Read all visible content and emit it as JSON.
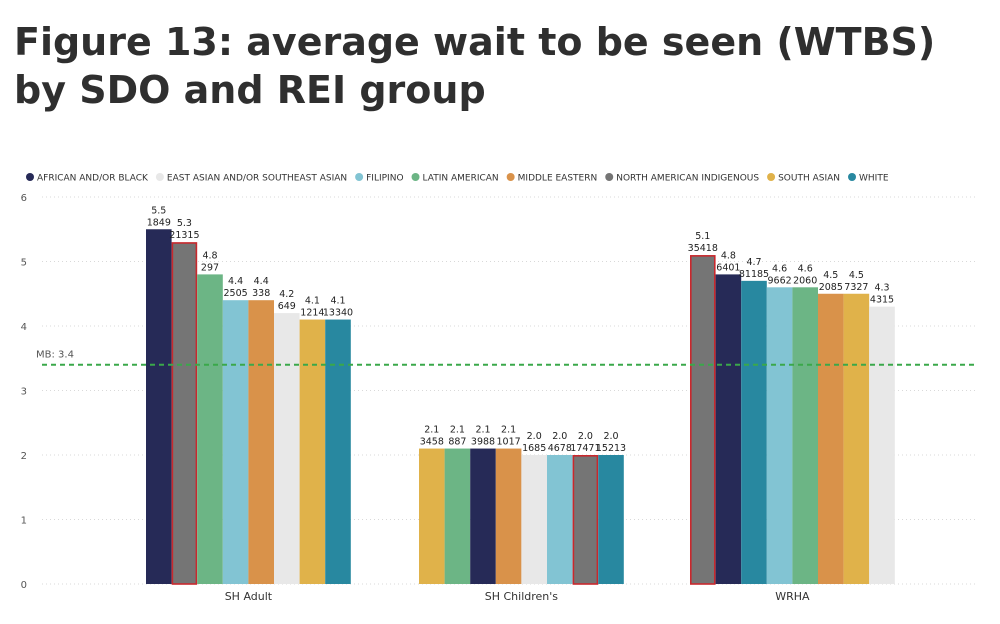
{
  "title": "Figure 13: average wait to be seen (WTBS) by SDO and REI group",
  "chart_data": {
    "type": "bar",
    "title": "Figure 13: average wait to be seen (WTBS) by SDO and REI group",
    "xlabel": "",
    "ylabel": "",
    "ylim": [
      0,
      6
    ],
    "yticks": [
      0,
      1,
      2,
      3,
      4,
      5,
      6
    ],
    "grid": true,
    "legend_position": "top-left",
    "reference_line": {
      "label": "MB: 3.4",
      "value": 3.4,
      "color": "#3aa84a"
    },
    "legend": [
      {
        "name": "AFRICAN AND/OR BLACK",
        "color": "#262a57"
      },
      {
        "name": "EAST ASIAN AND/OR SOUTHEAST ASIAN",
        "color": "#e8e8e8"
      },
      {
        "name": "FILIPINO",
        "color": "#82c4d3"
      },
      {
        "name": "LATIN AMERICAN",
        "color": "#6cb585"
      },
      {
        "name": "MIDDLE EASTERN",
        "color": "#d9924a"
      },
      {
        "name": "NORTH AMERICAN INDIGENOUS",
        "color": "#757575"
      },
      {
        "name": "SOUTH ASIAN",
        "color": "#e0b24a"
      },
      {
        "name": "WHITE",
        "color": "#2888a0"
      }
    ],
    "highlight_group": "NORTH AMERICAN INDIGENOUS",
    "highlight_color": "#c8282d",
    "categories": [
      {
        "name": "SH Adult",
        "bars": [
          {
            "group": "AFRICAN AND/OR BLACK",
            "value": 5.5,
            "value_label": "5.5",
            "count_label": "1849"
          },
          {
            "group": "NORTH AMERICAN INDIGENOUS",
            "value": 5.3,
            "value_label": "5.3",
            "count_label": "21315"
          },
          {
            "group": "LATIN AMERICAN",
            "value": 4.8,
            "value_label": "4.8",
            "count_label": "297"
          },
          {
            "group": "FILIPINO",
            "value": 4.4,
            "value_label": "4.4",
            "count_label": "2505"
          },
          {
            "group": "MIDDLE EASTERN",
            "value": 4.4,
            "value_label": "4.4",
            "count_label": "338"
          },
          {
            "group": "EAST ASIAN AND/OR SOUTHEAST ASIAN",
            "value": 4.2,
            "value_label": "4.2",
            "count_label": "649"
          },
          {
            "group": "SOUTH ASIAN",
            "value": 4.1,
            "value_label": "4.1",
            "count_label": "1214"
          },
          {
            "group": "WHITE",
            "value": 4.1,
            "value_label": "4.1",
            "count_label": "13340"
          }
        ]
      },
      {
        "name": "SH Children's",
        "bars": [
          {
            "group": "SOUTH ASIAN",
            "value": 2.1,
            "value_label": "2.1",
            "count_label": "3458"
          },
          {
            "group": "LATIN AMERICAN",
            "value": 2.1,
            "value_label": "2.1",
            "count_label": "887"
          },
          {
            "group": "AFRICAN AND/OR BLACK",
            "value": 2.1,
            "value_label": "2.1",
            "count_label": "3988"
          },
          {
            "group": "MIDDLE EASTERN",
            "value": 2.1,
            "value_label": "2.1",
            "count_label": "1017"
          },
          {
            "group": "EAST ASIAN AND/OR SOUTHEAST ASIAN",
            "value": 2.0,
            "value_label": "2.0",
            "count_label": "1685"
          },
          {
            "group": "FILIPINO",
            "value": 2.0,
            "value_label": "2.0",
            "count_label": "4678"
          },
          {
            "group": "NORTH AMERICAN INDIGENOUS",
            "value": 2.0,
            "value_label": "2.0",
            "count_label": "17471"
          },
          {
            "group": "WHITE",
            "value": 2.0,
            "value_label": "2.0",
            "count_label": "15213"
          }
        ]
      },
      {
        "name": "WRHA",
        "bars": [
          {
            "group": "NORTH AMERICAN INDIGENOUS",
            "value": 5.1,
            "value_label": "5.1",
            "count_label": "35418"
          },
          {
            "group": "AFRICAN AND/OR BLACK",
            "value": 4.8,
            "value_label": "4.8",
            "count_label": "6401"
          },
          {
            "group": "WHITE",
            "value": 4.7,
            "value_label": "4.7",
            "count_label": "81185"
          },
          {
            "group": "FILIPINO",
            "value": 4.6,
            "value_label": "4.6",
            "count_label": "9662"
          },
          {
            "group": "LATIN AMERICAN",
            "value": 4.6,
            "value_label": "4.6",
            "count_label": "2060"
          },
          {
            "group": "MIDDLE EASTERN",
            "value": 4.5,
            "value_label": "4.5",
            "count_label": "2085"
          },
          {
            "group": "SOUTH ASIAN",
            "value": 4.5,
            "value_label": "4.5",
            "count_label": "7327"
          },
          {
            "group": "EAST ASIAN AND/OR SOUTHEAST ASIAN",
            "value": 4.3,
            "value_label": "4.3",
            "count_label": "4315"
          }
        ]
      }
    ]
  }
}
